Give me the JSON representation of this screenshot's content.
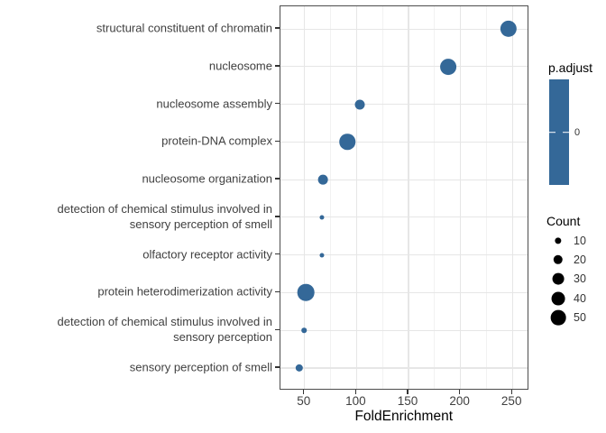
{
  "figure": {
    "background": "#FFFFFF",
    "panel_border_color": "#4D4D4D",
    "grid_major_color": "#E6E6E6",
    "grid_minor_color": "#F2F2F2",
    "tick_color": "#333333",
    "axis_text_color": "#404040",
    "dot_color": "#346898"
  },
  "chart_data": {
    "type": "scatter",
    "subtype": "go-enrichment-dotplot",
    "title": "",
    "xlabel": "FoldEnrichment",
    "ylabel": "",
    "x_major_ticks": [
      50,
      100,
      150,
      200,
      250
    ],
    "x_minor_ticks": [
      75,
      125,
      175,
      225
    ],
    "xlim": [
      27,
      266
    ],
    "grid": "vertical major+minor, horizontal major per category",
    "legend_position": "right",
    "categories": [
      "structural constituent of chromatin",
      "nucleosome",
      "nucleosome assembly",
      "protein-DNA complex",
      "nucleosome organization",
      "detection of chemical stimulus involved in sensory perception of smell",
      "olfactory receptor activity",
      "protein heterodimerization activity",
      "detection of chemical stimulus involved in sensory perception",
      "sensory perception of smell"
    ],
    "points": [
      {
        "label_lines": [
          "structural constituent of chromatin"
        ],
        "fold_enrichment": 246,
        "count": 60,
        "p_adjust": 0
      },
      {
        "label_lines": [
          "nucleosome"
        ],
        "fold_enrichment": 188,
        "count": 57,
        "p_adjust": 0
      },
      {
        "label_lines": [
          "nucleosome assembly"
        ],
        "fold_enrichment": 103,
        "count": 22,
        "p_adjust": 0
      },
      {
        "label_lines": [
          "protein-DNA complex"
        ],
        "fold_enrichment": 91,
        "count": 55,
        "p_adjust": 0
      },
      {
        "label_lines": [
          "nucleosome organization"
        ],
        "fold_enrichment": 67.5,
        "count": 21,
        "p_adjust": 0
      },
      {
        "label_lines": [
          "detection of chemical stimulus involved in",
          "sensory perception of smell"
        ],
        "fold_enrichment": 67,
        "count": 5,
        "p_adjust": 0
      },
      {
        "label_lines": [
          "olfactory receptor activity"
        ],
        "fold_enrichment": 67,
        "count": 5,
        "p_adjust": 0
      },
      {
        "label_lines": [
          "protein heterodimerization activity"
        ],
        "fold_enrichment": 51,
        "count": 62,
        "p_adjust": 0
      },
      {
        "label_lines": [
          "detection of chemical stimulus involved in",
          "sensory perception"
        ],
        "fold_enrichment": 49.5,
        "count": 6,
        "p_adjust": 0
      },
      {
        "label_lines": [
          "sensory perception of smell"
        ],
        "fold_enrichment": 45,
        "count": 13,
        "p_adjust": 0
      }
    ]
  },
  "legend": {
    "p_adjust": {
      "title": "p.adjust",
      "tick_labels": [
        "0"
      ],
      "bar_color": "#346898"
    },
    "count": {
      "title": "Count",
      "sizes": [
        10,
        20,
        30,
        40,
        50
      ],
      "key_color": "#000000"
    }
  }
}
